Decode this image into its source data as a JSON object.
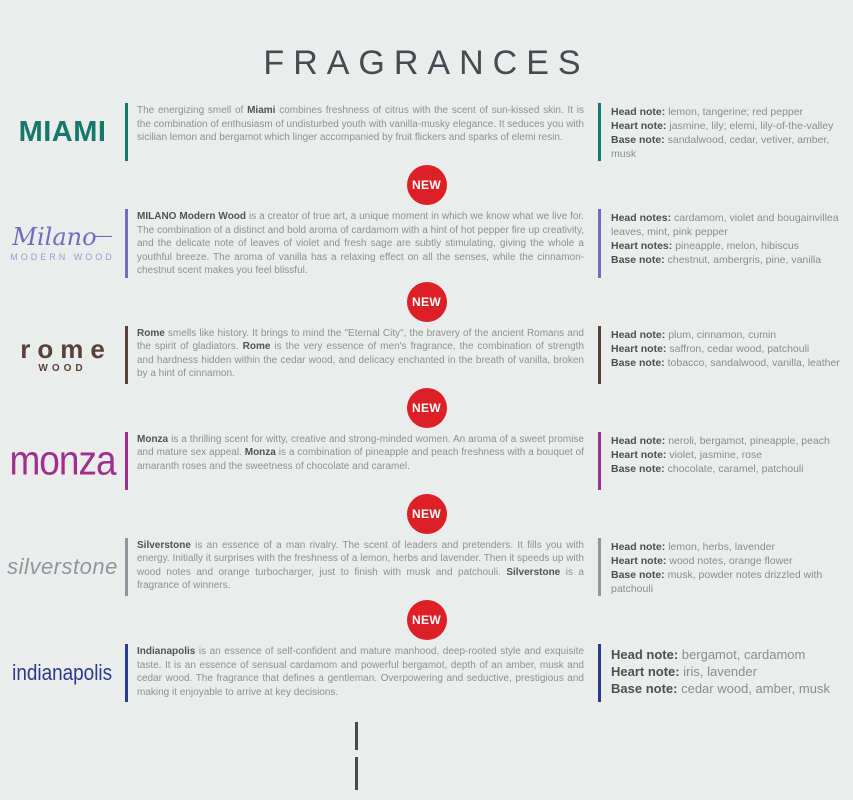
{
  "page": {
    "title": "FRAGRANCES"
  },
  "badge": {
    "label": "NEW",
    "color": "#dc2026"
  },
  "fragrances": [
    {
      "id": "miami",
      "logo_main": "MIAMI",
      "color": "#15786b",
      "description": [
        {
          "t": "The energizing smell of ",
          "b": false
        },
        {
          "t": "Miami",
          "b": true
        },
        {
          "t": " combines freshness of citrus with the scent of sun-kissed skin. It is the combination of enthusiasm of undisturbed youth with vanilla-musky elegance. It seduces you with sicilian lemon and bergamot which linger accompanied by fruit flickers and sparks of elemi resin.",
          "b": false
        }
      ],
      "notes": [
        {
          "label": "Head note:",
          "value": "lemon, tangerine; red pepper"
        },
        {
          "label": "Heart note:",
          "value": "jasmine, lily; elemi, lily-of-the-valley"
        },
        {
          "label": "Base note:",
          "value": "sandalwood, cedar, vetiver, amber, musk"
        }
      ]
    },
    {
      "id": "milano",
      "logo_main": "Milano",
      "logo_sub": "MODERN WOOD",
      "color": "#716cc0",
      "description": [
        {
          "t": "MILANO Modern Wood",
          "b": true
        },
        {
          "t": " is a creator of true art, a unique moment in which we know what we live for. The combination of a distinct and bold aroma of cardamom with a hint of hot pepper fire up creativity, and the delicate note of leaves of violet and fresh sage are subtly stimulating, giving the whole a youthful breeze. The aroma of vanilla has a relaxing effect on all the senses, while the cinnamon-chestnut scent makes you feel blissful.",
          "b": false
        }
      ],
      "notes": [
        {
          "label": "Head notes:",
          "value": "cardamom, violet and bougainvillea leaves, mint, pink pepper"
        },
        {
          "label": "Heart notes:",
          "value": "pineapple, melon, hibiscus"
        },
        {
          "label": "Base note:",
          "value": "chestnut, ambergris, pine, vanilla"
        }
      ]
    },
    {
      "id": "rome",
      "logo_main": "rome",
      "logo_sub": "WOOD",
      "color": "#59423a",
      "description": [
        {
          "t": "Rome",
          "b": true
        },
        {
          "t": " smells like history. It brings to mind the \"Eternal City\", the bravery of the ancient Romans and the spirit of gladiators. ",
          "b": false
        },
        {
          "t": "Rome",
          "b": true
        },
        {
          "t": " is the very essence of men's fragrance, the combination of strength and hardness hidden within the cedar wood, and delicacy enchanted in the breath of vanilla, broken by a hint of cinnamon.",
          "b": false
        }
      ],
      "notes": [
        {
          "label": "Head note:",
          "value": "plum, cinnamon, cumin"
        },
        {
          "label": "Heart note:",
          "value": "saffron, cedar wood, patchouli"
        },
        {
          "label": "Base note:",
          "value": "tobacco, sandalwood, vanilla, leather"
        }
      ]
    },
    {
      "id": "monza",
      "logo_main": "monza",
      "color": "#9e2f8e",
      "description": [
        {
          "t": "Monza",
          "b": true
        },
        {
          "t": " is a thrilling scent for witty, creative and strong-minded women. An aroma of a sweet promise and mature sex appeal. ",
          "b": false
        },
        {
          "t": "Monza",
          "b": true
        },
        {
          "t": " is a combination of pineapple and peach freshness with a bouquet of amaranth roses and the sweetness of chocolate and caramel.",
          "b": false
        }
      ],
      "notes": [
        {
          "label": "Head note:",
          "value": "neroli, bergamot, pineapple, peach"
        },
        {
          "label": "Heart note:",
          "value": "violet, jasmine, rose"
        },
        {
          "label": "Base note:",
          "value": "chocolate, caramel, patchouli"
        }
      ]
    },
    {
      "id": "silverstone",
      "logo_main": "silverstone",
      "color": "#8f979c",
      "description": [
        {
          "t": "Silverstone",
          "b": true
        },
        {
          "t": " is an essence of a man rivalry. The scent of leaders and pretenders. It fills you with energy. Initially it surprises with the freshness of a lemon, herbs and lavender. Then it speeds up with wood notes and orange turbocharger, just to finish with musk and patchouli. ",
          "b": false
        },
        {
          "t": "Silverstone",
          "b": true
        },
        {
          "t": " is a fragrance of winners.",
          "b": false
        }
      ],
      "notes": [
        {
          "label": "Head note:",
          "value": "lemon, herbs, lavender"
        },
        {
          "label": "Heart note:",
          "value": "wood notes, orange flower"
        },
        {
          "label": "Base note:",
          "value": "musk, powder notes drizzled with patchouli"
        }
      ]
    },
    {
      "id": "indianapolis",
      "logo_main": "indianapolis",
      "color": "#283a92",
      "description": [
        {
          "t": "Indianapolis",
          "b": true
        },
        {
          "t": " is an essence of self-confident and mature manhood, deep-rooted style and exquisite taste. It is an essence of sensual cardamom and powerful bergamot, depth of an amber, musk and cedar wood. The fragrance that defines a gentleman. Overpowering and seductive, prestigious and making it enjoyable to arrive at key decisions.",
          "b": false
        }
      ],
      "notes": [
        {
          "label": "Head note:",
          "value": "bergamot, cardamom"
        },
        {
          "label": "Heart note:",
          "value": "iris, lavender"
        },
        {
          "label": "Base note:",
          "value": "cedar wood, amber, musk"
        }
      ]
    }
  ]
}
